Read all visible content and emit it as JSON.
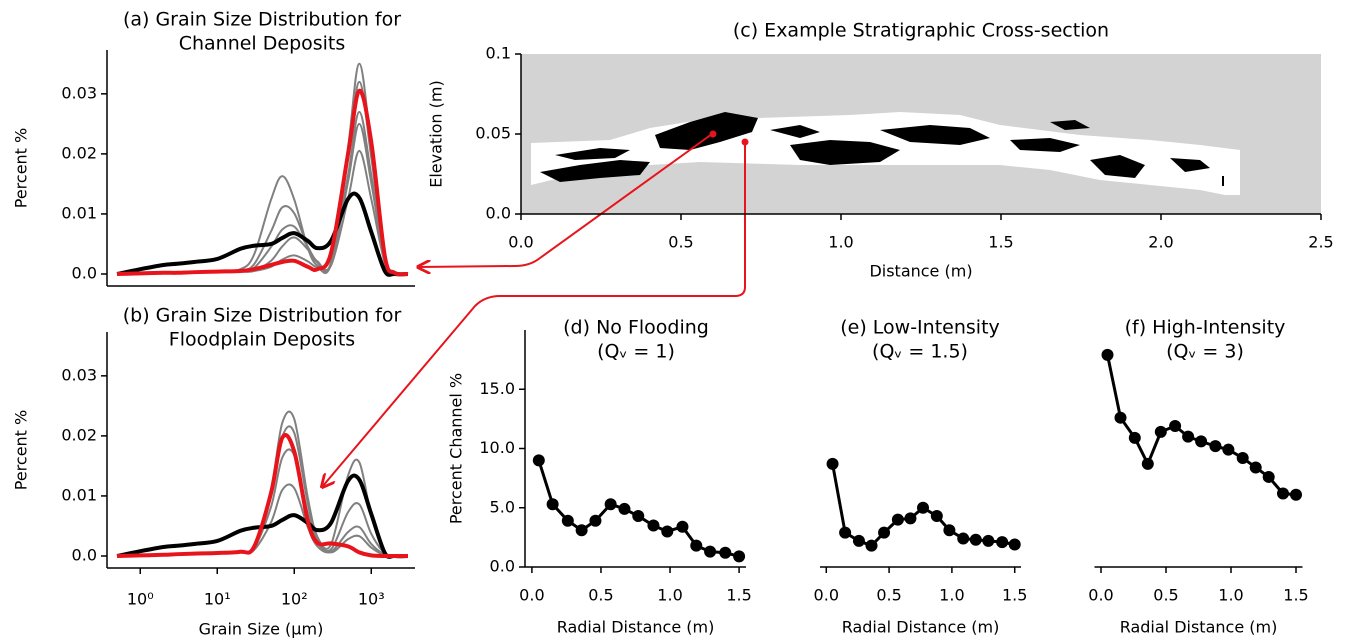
{
  "chart_data": [
    {
      "type": "line",
      "title": [
        "(a) Grain Size Distribution for",
        "Channel Deposits"
      ],
      "y_label": "Percent %",
      "xscale": "log",
      "xlim": [
        0.37,
        3700
      ],
      "ylim": [
        -0.002,
        0.0373
      ],
      "yticks": [
        {
          "value": 0,
          "label": "0.0"
        },
        0.01,
        0.02,
        0.03
      ],
      "x": [
        0.5,
        1,
        2,
        3,
        5,
        10,
        20,
        30,
        50,
        70,
        100,
        150,
        200,
        300,
        500,
        700,
        1000,
        1500,
        2000,
        3000
      ],
      "series": [
        {
          "color": "#808080",
          "values": [
            0,
            0.0001,
            0.0002,
            0.0002,
            0.0003,
            0.0003,
            0.0004,
            0.0005,
            0.0022,
            0.0046,
            0.0061,
            0.0041,
            0.0021,
            0.002,
            0.0212,
            0.035,
            0.0212,
            0.0031,
            0.0004,
            0
          ]
        },
        {
          "color": "#808080",
          "values": [
            0,
            0.0001,
            0.0002,
            0.0003,
            0.0003,
            0.0004,
            0.0008,
            0.0032,
            0.0124,
            0.0163,
            0.0124,
            0.0043,
            0.0014,
            0.0016,
            0.0165,
            0.027,
            0.0165,
            0.0024,
            0.0003,
            0
          ]
        },
        {
          "color": "#808080",
          "values": [
            0,
            0.0001,
            0.0002,
            0.0003,
            0.0003,
            0.0004,
            0.0006,
            0.0016,
            0.0071,
            0.0111,
            0.0101,
            0.0045,
            0.0019,
            0.0016,
            0.0154,
            0.025,
            0.0152,
            0.0022,
            0.0003,
            0
          ]
        },
        {
          "color": "#808080",
          "values": [
            0,
            0.0001,
            0.0002,
            0.0002,
            0.0003,
            0.0003,
            0.0004,
            0.0005,
            0.0012,
            0.0024,
            0.0031,
            0.0021,
            0.0011,
            0.0017,
            0.0194,
            0.032,
            0.0194,
            0.0028,
            0.0004,
            0
          ]
        },
        {
          "color": "#808080",
          "values": [
            0,
            0.0001,
            0.0002,
            0.0002,
            0.0003,
            0.0004,
            0.0005,
            0.001,
            0.0045,
            0.0074,
            0.0079,
            0.0045,
            0.002,
            0.0014,
            0.0125,
            0.0205,
            0.0125,
            0.0018,
            0.0003,
            0
          ]
        },
        {
          "color": "#000000",
          "values": [
            0,
            0.0008,
            0.0015,
            0.0017,
            0.002,
            0.0025,
            0.0042,
            0.0047,
            0.005,
            0.006,
            0.0068,
            0.0055,
            0.0043,
            0.0055,
            0.0125,
            0.0127,
            0.007,
            0.0005,
            0,
            0
          ]
        },
        {
          "color": "#e8141c",
          "values": [
            0,
            0.0001,
            0.0002,
            0.0002,
            0.0003,
            0.0004,
            0.0005,
            0.0008,
            0.0015,
            0.002,
            0.0022,
            0.0012,
            0.0008,
            0.0035,
            0.02,
            0.0305,
            0.022,
            0.003,
            0.0002,
            0
          ]
        }
      ]
    },
    {
      "type": "line",
      "title": [
        "(b) Grain Size Distribution for",
        "Floodplain Deposits"
      ],
      "y_label": "Percent %",
      "x_label": "Grain Size (μm)",
      "xscale": "log",
      "xlim": [
        0.37,
        3700
      ],
      "ylim": [
        -0.002,
        0.0373
      ],
      "xticks": [
        {
          "value": 1,
          "label": "10⁰"
        },
        {
          "value": 10,
          "label": "10¹"
        },
        {
          "value": 100,
          "label": "10²"
        },
        {
          "value": 1000,
          "label": "10³"
        }
      ],
      "yticks": [
        {
          "value": 0,
          "label": "0.0"
        },
        0.01,
        0.02,
        0.03
      ],
      "x": [
        0.5,
        1,
        2,
        3,
        5,
        10,
        20,
        30,
        50,
        70,
        100,
        150,
        200,
        300,
        500,
        700,
        1000,
        1500,
        2000,
        3000
      ],
      "series": [
        {
          "color": "#808080",
          "values": [
            0,
            0.0001,
            0.0002,
            0.0003,
            0.0004,
            0.0005,
            0.0007,
            0.0016,
            0.0112,
            0.0222,
            0.0228,
            0.0097,
            0.0032,
            0.0019,
            0.0134,
            0.0156,
            0.0068,
            0.0007,
            0,
            0
          ]
        },
        {
          "color": "#808080",
          "values": [
            0,
            0.0001,
            0.0002,
            0.0003,
            0.0004,
            0.0005,
            0.0007,
            0.0013,
            0.0082,
            0.0164,
            0.0168,
            0.0071,
            0.0023,
            0.0011,
            0.0073,
            0.0086,
            0.0037,
            0.0004,
            0,
            0
          ]
        },
        {
          "color": "#808080",
          "values": [
            0,
            0.0001,
            0.0002,
            0.0003,
            0.0004,
            0.0005,
            0.0006,
            0.001,
            0.0056,
            0.011,
            0.0113,
            0.0048,
            0.0016,
            0.0007,
            0.004,
            0.0048,
            0.002,
            0.0002,
            0,
            0
          ]
        },
        {
          "color": "#808080",
          "values": [
            0,
            0.0001,
            0.0002,
            0.0003,
            0.0004,
            0.0005,
            0.0007,
            0.0015,
            0.0101,
            0.0199,
            0.0205,
            0.0087,
            0.0028,
            0.0006,
            0.0028,
            0.0033,
            0.0014,
            0.0001,
            0,
            0
          ]
        },
        {
          "color": "#000000",
          "values": [
            0,
            0.0008,
            0.0015,
            0.0017,
            0.002,
            0.0025,
            0.0042,
            0.0047,
            0.005,
            0.006,
            0.0068,
            0.0055,
            0.0043,
            0.0055,
            0.0125,
            0.0127,
            0.007,
            0.0005,
            0,
            0
          ]
        },
        {
          "color": "#e8141c",
          "values": [
            0,
            0.0001,
            0.0002,
            0.0003,
            0.0004,
            0.0005,
            0.0007,
            0.0015,
            0.0105,
            0.0197,
            0.0174,
            0.0058,
            0.0022,
            0.0021,
            0.0016,
            0.0006,
            0.0001,
            0,
            0,
            0
          ]
        }
      ]
    },
    {
      "type": "image",
      "title": [
        "(c) Example Stratigraphic Cross-section"
      ],
      "y_label": "Elevation (m)",
      "x_label": "Distance (m)",
      "xlim": [
        0,
        2.5
      ],
      "ylim": [
        0,
        0.1
      ],
      "xticks": [
        {
          "value": 0,
          "label": "0.0"
        },
        0.5,
        {
          "value": 1,
          "label": "1.0"
        },
        1.5,
        {
          "value": 2,
          "label": "2.0"
        },
        2.5
      ],
      "yticks": [
        {
          "value": 0,
          "label": "0.0"
        },
        0.05,
        0.1
      ],
      "points": {
        "color": "#e8141c",
        "x": [
          0.6,
          0.7
        ],
        "y": [
          0.05,
          0.045
        ]
      }
    },
    {
      "type": "line",
      "markers": true,
      "title": [
        "(d) No Flooding",
        "(Qᵥ = 1)"
      ],
      "y_label": "Percent Channel %",
      "x_label": "Radial Distance (m)",
      "xlim": [
        -0.05,
        1.55
      ],
      "ylim": [
        0,
        20
      ],
      "xticks": [
        {
          "value": 0,
          "label": "0.0"
        },
        0.5,
        {
          "value": 1,
          "label": "1.0"
        },
        1.5
      ],
      "yticks": [
        {
          "value": 0,
          "label": "0.0"
        },
        {
          "value": 5,
          "label": "5.0"
        },
        {
          "value": 10,
          "label": "10.0"
        },
        {
          "value": 15,
          "label": "15.0"
        }
      ],
      "x": [
        0.05,
        0.15,
        0.26,
        0.36,
        0.46,
        0.57,
        0.67,
        0.77,
        0.88,
        0.98,
        1.09,
        1.19,
        1.29,
        1.4,
        1.5
      ],
      "series": [
        {
          "color": "#000000",
          "values": [
            9.0,
            5.3,
            3.9,
            3.1,
            3.9,
            5.3,
            4.9,
            4.3,
            3.5,
            3.0,
            3.4,
            1.8,
            1.3,
            1.2,
            0.9
          ]
        }
      ]
    },
    {
      "type": "line",
      "markers": true,
      "title": [
        "(e) Low-Intensity",
        "(Qᵥ = 1.5)"
      ],
      "x_label": "Radial Distance (m)",
      "xlim": [
        -0.05,
        1.55
      ],
      "ylim": [
        0,
        20
      ],
      "xticks": [
        {
          "value": 0,
          "label": "0.0"
        },
        0.5,
        {
          "value": 1,
          "label": "1.0"
        },
        1.5
      ],
      "x": [
        0.05,
        0.15,
        0.26,
        0.36,
        0.46,
        0.57,
        0.67,
        0.77,
        0.88,
        0.98,
        1.09,
        1.19,
        1.29,
        1.4,
        1.5
      ],
      "series": [
        {
          "color": "#000000",
          "values": [
            8.7,
            2.9,
            2.2,
            1.8,
            2.9,
            4.0,
            4.1,
            5.0,
            4.3,
            3.1,
            2.4,
            2.3,
            2.2,
            2.1,
            1.9
          ]
        }
      ]
    },
    {
      "type": "line",
      "markers": true,
      "title": [
        "(f) High-Intensity",
        "(Qᵥ = 3)"
      ],
      "x_label": "Radial Distance (m)",
      "xlim": [
        -0.05,
        1.55
      ],
      "ylim": [
        0,
        20
      ],
      "xticks": [
        {
          "value": 0,
          "label": "0.0"
        },
        0.5,
        {
          "value": 1,
          "label": "1.0"
        },
        1.5
      ],
      "x": [
        0.05,
        0.15,
        0.26,
        0.36,
        0.46,
        0.57,
        0.67,
        0.77,
        0.88,
        0.98,
        1.09,
        1.19,
        1.29,
        1.4,
        1.5
      ],
      "series": [
        {
          "color": "#000000",
          "values": [
            17.9,
            12.6,
            10.9,
            8.7,
            11.4,
            11.9,
            11.0,
            10.6,
            10.2,
            9.9,
            9.2,
            8.4,
            7.6,
            6.2,
            6.1
          ]
        }
      ]
    }
  ]
}
